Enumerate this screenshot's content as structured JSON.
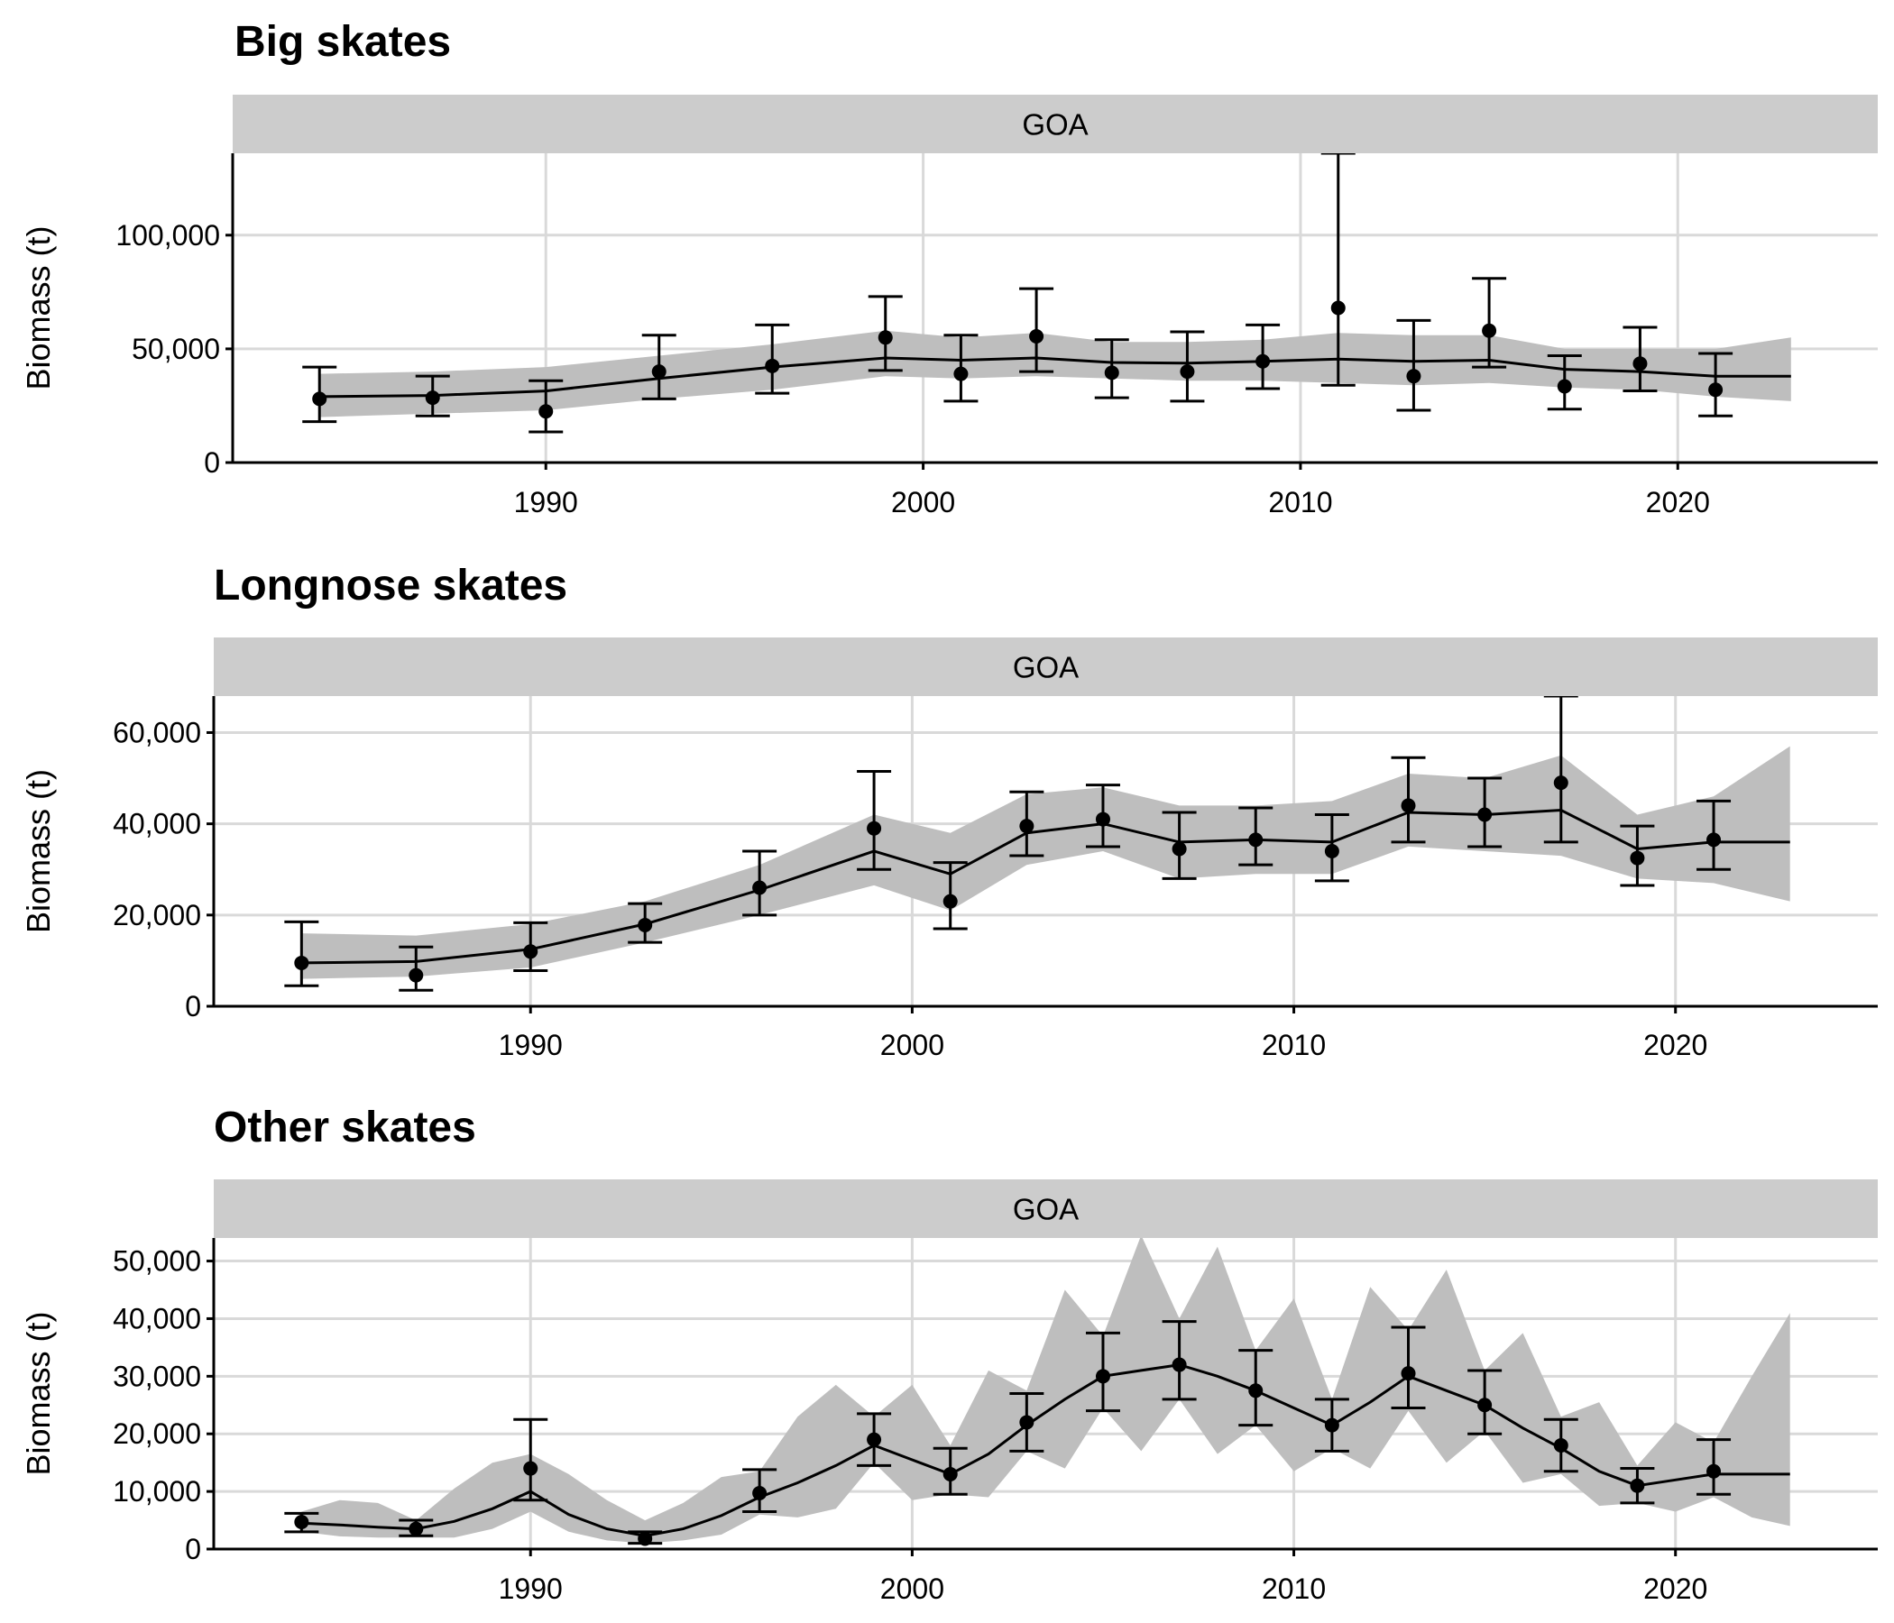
{
  "chart_data": [
    {
      "type": "line",
      "title": "Big skates",
      "facet": "GOA",
      "ylabel": "Biomass (t)",
      "xlabel": "",
      "xlim": [
        1981.7,
        2025.3
      ],
      "ylim": [
        0,
        136000
      ],
      "x_ticks": [
        1990,
        2000,
        2010,
        2020
      ],
      "x_tick_labels": [
        "1990",
        "2000",
        "2010",
        "2020"
      ],
      "y_ticks": [
        0,
        50000,
        100000
      ],
      "y_tick_labels": [
        "0",
        "50,000",
        "100,000"
      ],
      "grid": true,
      "estimate": {
        "x": [
          1984,
          1987,
          1990,
          1993,
          1996,
          1999,
          2001,
          2003,
          2005,
          2007,
          2009,
          2011,
          2013,
          2015,
          2017,
          2019,
          2021,
          2023
        ],
        "y": [
          29000,
          29500,
          31500,
          37000,
          42000,
          46000,
          45000,
          46000,
          44000,
          43700,
          44500,
          45500,
          44500,
          45000,
          41000,
          40000,
          38000,
          38000
        ],
        "lower": [
          20000,
          21500,
          23000,
          28000,
          32000,
          38000,
          37000,
          38000,
          37000,
          36000,
          36000,
          35000,
          34000,
          35000,
          33000,
          32000,
          29000,
          27000
        ],
        "upper": [
          39000,
          40000,
          42000,
          47000,
          52000,
          58000,
          55000,
          57000,
          53000,
          53000,
          54000,
          57000,
          56000,
          56000,
          50000,
          50000,
          50000,
          55000
        ]
      },
      "observations": {
        "x": [
          1984,
          1987,
          1990,
          1993,
          1996,
          1999,
          2001,
          2003,
          2005,
          2007,
          2009,
          2011,
          2013,
          2015,
          2017,
          2019,
          2021
        ],
        "y": [
          28000,
          28500,
          22500,
          40000,
          42500,
          55000,
          39000,
          55500,
          39500,
          40000,
          44500,
          68000,
          38000,
          58000,
          33500,
          43500,
          32000
        ],
        "lower": [
          18000,
          20500,
          13500,
          28000,
          30500,
          40500,
          27000,
          40000,
          28500,
          27000,
          32500,
          34000,
          23000,
          42000,
          23500,
          31500,
          20500
        ],
        "upper": [
          42000,
          38000,
          36000,
          56000,
          60500,
          73000,
          56000,
          76500,
          54000,
          57500,
          60500,
          136000,
          62500,
          81000,
          47000,
          59500,
          48000
        ]
      }
    },
    {
      "type": "line",
      "title": "Longnose skates",
      "facet": "GOA",
      "ylabel": "Biomass (t)",
      "xlabel": "",
      "xlim": [
        1981.7,
        2025.3
      ],
      "ylim": [
        0,
        68000
      ],
      "x_ticks": [
        1990,
        2000,
        2010,
        2020
      ],
      "x_tick_labels": [
        "1990",
        "2000",
        "2010",
        "2020"
      ],
      "y_ticks": [
        0,
        20000,
        40000,
        60000
      ],
      "y_tick_labels": [
        "0",
        "20,000",
        "40,000",
        "60,000"
      ],
      "grid": true,
      "estimate": {
        "x": [
          1984,
          1987,
          1990,
          1993,
          1996,
          1999,
          2001,
          2003,
          2005,
          2007,
          2009,
          2011,
          2013,
          2015,
          2017,
          2019,
          2021,
          2023
        ],
        "y": [
          9500,
          9800,
          12500,
          18000,
          25500,
          34000,
          29000,
          38000,
          40000,
          36000,
          36500,
          36000,
          42500,
          42000,
          43000,
          34500,
          36000,
          36000
        ],
        "lower": [
          6000,
          6500,
          8500,
          14000,
          20000,
          26500,
          21000,
          31000,
          34000,
          28000,
          29000,
          29000,
          35000,
          34000,
          33000,
          28000,
          27000,
          23000
        ],
        "upper": [
          16000,
          15500,
          18000,
          23000,
          31000,
          42000,
          38000,
          46500,
          48000,
          44000,
          44000,
          45000,
          51000,
          50000,
          55000,
          42000,
          46000,
          57000
        ]
      },
      "observations": {
        "x": [
          1984,
          1987,
          1990,
          1993,
          1996,
          1999,
          2001,
          2003,
          2005,
          2007,
          2009,
          2011,
          2013,
          2015,
          2017,
          2019,
          2021
        ],
        "y": [
          9500,
          6800,
          12000,
          17800,
          26000,
          39000,
          23000,
          39500,
          41000,
          34500,
          36500,
          34000,
          44000,
          42000,
          49000,
          32500,
          36500
        ],
        "lower": [
          4500,
          3500,
          7800,
          14000,
          20000,
          30000,
          17000,
          33000,
          35000,
          28000,
          31000,
          27500,
          36000,
          35000,
          36000,
          26500,
          30000
        ],
        "upper": [
          18500,
          13000,
          18300,
          22500,
          34000,
          51500,
          31500,
          47000,
          48500,
          42500,
          43500,
          42000,
          54500,
          50000,
          68000,
          39500,
          45000
        ]
      }
    },
    {
      "type": "line",
      "title": "Other skates",
      "facet": "GOA",
      "ylabel": "Biomass (t)",
      "xlabel": "",
      "xlim": [
        1981.7,
        2025.3
      ],
      "ylim": [
        0,
        54000
      ],
      "x_ticks": [
        1990,
        2000,
        2010,
        2020
      ],
      "x_tick_labels": [
        "1990",
        "2000",
        "2010",
        "2020"
      ],
      "y_ticks": [
        0,
        10000,
        20000,
        30000,
        40000,
        50000
      ],
      "y_tick_labels": [
        "0",
        "10,000",
        "20,000",
        "30,000",
        "40,000",
        "50,000"
      ],
      "grid": true,
      "estimate": {
        "x": [
          1984,
          1985,
          1986,
          1987,
          1988,
          1989,
          1990,
          1991,
          1992,
          1993,
          1994,
          1995,
          1996,
          1997,
          1998,
          1999,
          2000,
          2001,
          2002,
          2003,
          2004,
          2005,
          2006,
          2007,
          2008,
          2009,
          2010,
          2011,
          2012,
          2013,
          2014,
          2015,
          2016,
          2017,
          2018,
          2019,
          2020,
          2021,
          2022,
          2023
        ],
        "y": [
          4500,
          4200,
          3800,
          3500,
          4800,
          7000,
          10000,
          6000,
          3500,
          2300,
          3500,
          5800,
          9000,
          11500,
          14500,
          18000,
          15500,
          13000,
          16500,
          21500,
          26000,
          30000,
          31000,
          32000,
          30000,
          27500,
          24500,
          21500,
          25500,
          30000,
          27500,
          25000,
          21000,
          17500,
          13500,
          11000,
          12000,
          13000,
          13000,
          13000
        ],
        "lower": [
          3000,
          2200,
          2000,
          2000,
          2000,
          3500,
          6500,
          3000,
          1500,
          1000,
          1500,
          2500,
          6000,
          5500,
          7000,
          15000,
          8500,
          9500,
          9000,
          17000,
          14000,
          24500,
          17000,
          26000,
          16500,
          21500,
          13500,
          17500,
          14000,
          24000,
          15000,
          20500,
          11500,
          13000,
          7500,
          8000,
          6500,
          9000,
          5500,
          4000
        ],
        "upper": [
          6500,
          8500,
          8000,
          5000,
          10500,
          15000,
          16500,
          13000,
          8500,
          5000,
          8000,
          12500,
          13500,
          23000,
          28500,
          23000,
          28500,
          18000,
          31000,
          27500,
          45000,
          37000,
          54500,
          40000,
          52500,
          34500,
          43500,
          26000,
          45500,
          38000,
          48500,
          31000,
          37500,
          23000,
          25500,
          14500,
          22000,
          18500,
          30000,
          41000
        ]
      },
      "observations": {
        "x": [
          1984,
          1987,
          1990,
          1993,
          1996,
          1999,
          2001,
          2003,
          2005,
          2007,
          2009,
          2011,
          2013,
          2015,
          2017,
          2019,
          2021
        ],
        "y": [
          4700,
          3500,
          14000,
          1800,
          9700,
          19000,
          13000,
          22000,
          30000,
          32000,
          27500,
          21500,
          30500,
          25000,
          18000,
          11000,
          13500
        ],
        "lower": [
          3000,
          2300,
          8500,
          1000,
          6500,
          14500,
          9500,
          17000,
          24000,
          26000,
          21500,
          17000,
          24500,
          20000,
          13500,
          8000,
          9500
        ],
        "upper": [
          6200,
          5000,
          22500,
          3000,
          13800,
          23500,
          17500,
          27000,
          37500,
          39500,
          34500,
          26000,
          38500,
          31000,
          22500,
          14000,
          19000
        ]
      }
    }
  ]
}
